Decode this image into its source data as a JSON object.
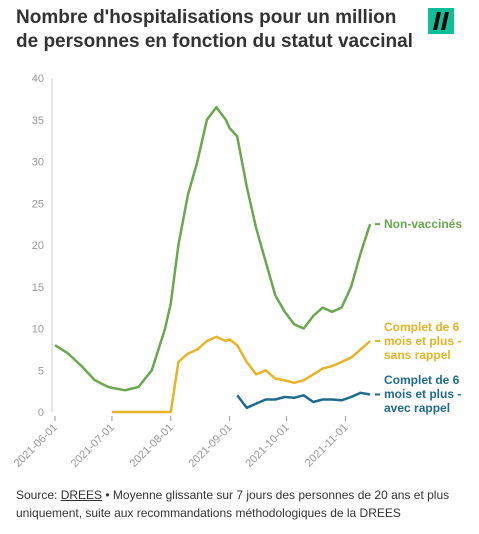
{
  "chart_data": {
    "type": "line",
    "title": "Nombre d'hospitalisations pour un million de personnes en fonction du statut vaccinal",
    "x": [
      "2021-06-01",
      "2021-06-08",
      "2021-06-15",
      "2021-06-22",
      "2021-06-29",
      "2021-07-01",
      "2021-07-08",
      "2021-07-15",
      "2021-07-22",
      "2021-07-29",
      "2021-08-01",
      "2021-08-05",
      "2021-08-10",
      "2021-08-15",
      "2021-08-20",
      "2021-08-25",
      "2021-08-30",
      "2021-09-01",
      "2021-09-05",
      "2021-09-10",
      "2021-09-15",
      "2021-09-20",
      "2021-09-25",
      "2021-09-30",
      "2021-10-05",
      "2021-10-10",
      "2021-10-15",
      "2021-10-20",
      "2021-10-25",
      "2021-10-30",
      "2021-11-04",
      "2021-11-09",
      "2021-11-14"
    ],
    "series": [
      {
        "name": "Non-vaccinés",
        "color": "#6aa84f",
        "values": [
          8,
          7,
          5.5,
          3.8,
          3,
          2.9,
          2.6,
          3,
          5,
          10,
          13,
          20,
          26,
          30,
          35,
          36.5,
          35,
          34,
          33,
          27,
          22,
          18,
          14,
          12,
          10.5,
          10,
          11.5,
          12.5,
          12,
          12.5,
          15,
          19,
          22.5
        ]
      },
      {
        "name": "Complet de 6 mois et plus - sans rappel",
        "color": "#e6b426",
        "values": [
          null,
          null,
          null,
          null,
          null,
          0,
          0,
          0,
          0,
          0,
          0,
          6,
          7,
          7.5,
          8.5,
          9,
          8.5,
          8.7,
          8,
          6,
          4.5,
          5,
          4,
          3.8,
          3.5,
          3.8,
          4.5,
          5.2,
          5.5,
          6,
          6.5,
          7.5,
          8.5
        ]
      },
      {
        "name": "Complet de 6 mois et plus - avec rappel",
        "color": "#1f6b8e",
        "values": [
          null,
          null,
          null,
          null,
          null,
          null,
          null,
          null,
          null,
          null,
          null,
          null,
          null,
          null,
          null,
          null,
          null,
          null,
          2,
          0.5,
          1,
          1.5,
          1.5,
          1.8,
          1.7,
          2,
          1.2,
          1.5,
          1.5,
          1.4,
          1.8,
          2.3,
          2.1
        ]
      }
    ],
    "xlim": [
      "2021-06-01",
      "2021-11-15"
    ],
    "xticks": [
      "2021-06-01",
      "2021-07-01",
      "2021-08-01",
      "2021-09-01",
      "2021-10-01",
      "2021-11-01"
    ],
    "ylim": [
      0,
      40
    ],
    "yticks": [
      0,
      5,
      10,
      15,
      20,
      25,
      30,
      35,
      40
    ],
    "grid": false,
    "source_label": "Source:",
    "source_link": "DREES",
    "note": "• Moyenne glissante sur 7 jours des personnes de 20 ans et plus uniquement, suite aux recommandations méthodologiques de la DREES"
  }
}
